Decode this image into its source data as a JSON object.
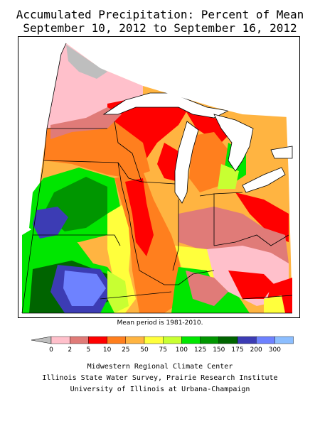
{
  "title_line1": "Accumulated Precipitation: Percent of Mean",
  "title_line2": "September 10, 2012 to September 16, 2012",
  "mean_period_note": "Mean period is 1981-2010.",
  "legend": {
    "labels": [
      "0",
      "2",
      "5",
      "10",
      "25",
      "50",
      "75",
      "100",
      "125",
      "150",
      "175",
      "200",
      "300"
    ],
    "colors": [
      "#ffc0cb",
      "#e07b78",
      "#ff0000",
      "#ff7f1e",
      "#ffb441",
      "#ffff3c",
      "#c8ff32",
      "#00e600",
      "#009600",
      "#006400",
      "#3c3cb4",
      "#6e82ff",
      "#8cbeff"
    ],
    "missing_color": "#bebebe"
  },
  "credits": [
    "Midwestern Regional Climate Center",
    "Illinois State Water Survey, Prairie Research Institute",
    "University of Illinois at Urbana-Champaign"
  ],
  "map": {
    "region": "Midwestern United States",
    "water_color": "#ffffff",
    "outline_color": "#000000",
    "zones": [
      {
        "area": "northwestern Minnesota",
        "class": "missing"
      },
      {
        "area": "northern Minnesota",
        "class": "0-2"
      },
      {
        "area": "northeastern Minnesota / Lake Superior shore",
        "class": "5-10"
      },
      {
        "area": "central Minnesota",
        "class": "25-50"
      },
      {
        "area": "western Minnesota",
        "class": "50-75"
      },
      {
        "area": "southwestern Minnesota",
        "class": "125-150"
      },
      {
        "area": "northwestern Iowa",
        "class": "150-175"
      },
      {
        "area": "southwestern Iowa / northern Missouri",
        "class": "175-200"
      },
      {
        "area": "western Wisconsin",
        "class": "5-10"
      },
      {
        "area": "eastern Wisconsin",
        "class": "25-50"
      },
      {
        "area": "central Iowa",
        "class": "25-50"
      },
      {
        "area": "eastern Iowa / western Illinois",
        "class": "10-25"
      },
      {
        "area": "central Illinois",
        "class": "50-75"
      },
      {
        "area": "Michigan lower peninsula",
        "class": "25-50"
      },
      {
        "area": "western Michigan shoreline",
        "class": "10-25"
      },
      {
        "area": "northeastern lower Michigan",
        "class": "100-125"
      },
      {
        "area": "northern Indiana",
        "class": "50-75"
      },
      {
        "area": "Ohio",
        "class": "25-50"
      },
      {
        "area": "southern Illinois / southern Indiana",
        "class": "100-125"
      },
      {
        "area": "central Kentucky",
        "class": "2-5"
      },
      {
        "area": "eastern Kentucky",
        "class": "5-10"
      },
      {
        "area": "southeastern Kentucky",
        "class": "75-100"
      },
      {
        "area": "southern Missouri",
        "class": "75-100"
      }
    ]
  }
}
